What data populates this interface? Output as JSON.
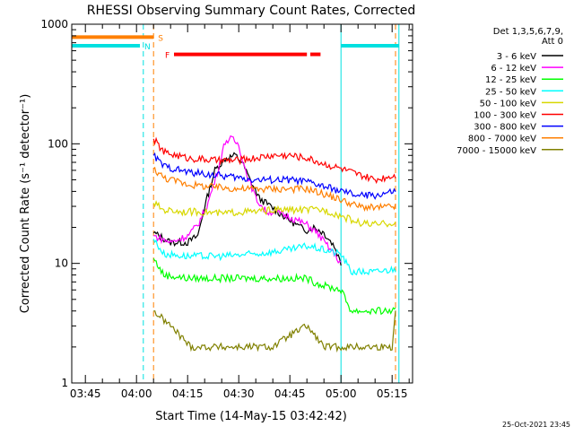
{
  "chart_data": {
    "type": "line",
    "title": "RHESSI Observing Summary Count Rates, Corrected",
    "xlabel": "Start Time (14-May-15 03:42:42)",
    "ylabel": "Corrected Count Rate (s⁻¹ detector⁻¹)",
    "y_scale": "log",
    "ylim": [
      1,
      1000
    ],
    "xlim": [
      "03:41",
      "05:21"
    ],
    "x_tick_labels": [
      "03:45",
      "04:00",
      "04:15",
      "04:30",
      "04:45",
      "05:00",
      "05:15"
    ],
    "y_tick_labels": [
      "1",
      "10",
      "100",
      "1000"
    ],
    "footer_date": "25-Oct-2021 23:45",
    "legend": {
      "placement": "right",
      "header_lines": [
        "Det 1,3,5,6,7,9,",
        "Att 0"
      ]
    },
    "flags": [
      {
        "label": "S",
        "color": "#ff7f00",
        "value": 780,
        "segments": [
          [
            "03:41",
            "04:05"
          ]
        ]
      },
      {
        "label": "N",
        "color": "#00e0e0",
        "value": 660,
        "segments": [
          [
            "03:41",
            "04:01"
          ],
          [
            "05:00",
            "05:17"
          ]
        ]
      },
      {
        "label": "F",
        "color": "#ff0000",
        "value": 560,
        "segments": [
          [
            "04:11",
            "04:50"
          ],
          [
            "04:51",
            "04:54"
          ]
        ]
      }
    ],
    "markers": [
      {
        "time": "04:02",
        "color": "#00e0e0",
        "style": "dashed"
      },
      {
        "time": "04:05",
        "color": "#ff7f00",
        "style": "dashed"
      },
      {
        "time": "05:00",
        "color": "#00e0e0",
        "style": "solid"
      },
      {
        "time": "05:16",
        "color": "#ff7f00",
        "style": "dashed"
      },
      {
        "time": "05:17",
        "color": "#00e0e0",
        "style": "solid"
      }
    ],
    "series": [
      {
        "name": "3 - 6 keV",
        "color": "#000000",
        "x": [
          "04:05",
          "04:10",
          "04:15",
          "04:18",
          "04:20",
          "04:23",
          "04:26",
          "04:29",
          "04:31",
          "04:33",
          "04:36",
          "04:40",
          "04:44",
          "04:48",
          "04:50",
          "04:52",
          "04:55",
          "04:58",
          "05:00"
        ],
        "values": [
          18,
          15,
          15,
          17,
          30,
          60,
          75,
          80,
          70,
          52,
          35,
          29,
          24,
          20,
          19,
          20,
          18,
          14,
          10
        ]
      },
      {
        "name": "6 - 12 keV",
        "color": "#ff00ff",
        "x": [
          "04:05",
          "04:10",
          "04:15",
          "04:18",
          "04:21",
          "04:24",
          "04:26",
          "04:28",
          "04:30",
          "04:32",
          "04:35",
          "04:38",
          "04:41",
          "04:44",
          "04:47",
          "04:50",
          "04:53",
          "04:56",
          "04:58",
          "05:00"
        ],
        "values": [
          17,
          15,
          17,
          21,
          32,
          62,
          105,
          110,
          98,
          60,
          35,
          27,
          27,
          25,
          23,
          21,
          18,
          14,
          12,
          10
        ]
      },
      {
        "name": "12 - 25 keV",
        "color": "#00ff00",
        "x": [
          "04:05",
          "04:08",
          "04:15",
          "04:25",
          "04:35",
          "04:45",
          "04:50",
          "04:52",
          "04:55",
          "05:00",
          "05:03",
          "05:15",
          "05:16"
        ],
        "values": [
          11,
          8,
          7.5,
          7.5,
          7.5,
          7.5,
          7.5,
          7,
          6.5,
          6,
          4,
          4,
          4
        ]
      },
      {
        "name": "25 - 50 keV",
        "color": "#00ffff",
        "x": [
          "04:05",
          "04:08",
          "04:15",
          "04:25",
          "04:35",
          "04:45",
          "04:50",
          "04:55",
          "05:00",
          "05:03",
          "05:10",
          "05:16"
        ],
        "values": [
          16,
          12,
          11.5,
          11.5,
          12,
          13,
          14,
          13,
          12,
          8.5,
          8.5,
          9
        ]
      },
      {
        "name": "50 - 100 keV",
        "color": "#d8d800",
        "x": [
          "04:05",
          "04:08",
          "04:15",
          "04:20",
          "04:25",
          "04:30",
          "04:35",
          "04:40",
          "04:45",
          "04:50",
          "04:55",
          "05:00",
          "05:05",
          "05:10",
          "05:16"
        ],
        "values": [
          32,
          28,
          27,
          27,
          26,
          27,
          27,
          28,
          28,
          28,
          28,
          25,
          22,
          21,
          22
        ]
      },
      {
        "name": "100 - 300 keV",
        "color": "#ff0000",
        "x": [
          "04:05",
          "04:08",
          "04:15",
          "04:20",
          "04:25",
          "04:30",
          "04:35",
          "04:40",
          "04:45",
          "04:50",
          "04:55",
          "05:00",
          "05:05",
          "05:10",
          "05:16"
        ],
        "values": [
          110,
          85,
          76,
          74,
          72,
          73,
          76,
          80,
          80,
          76,
          68,
          62,
          55,
          50,
          55
        ]
      },
      {
        "name": "300 - 800 keV",
        "color": "#0000ff",
        "x": [
          "04:05",
          "04:08",
          "04:15",
          "04:20",
          "04:25",
          "04:30",
          "04:35",
          "04:40",
          "04:45",
          "04:50",
          "04:55",
          "05:00",
          "05:05",
          "05:10",
          "05:16"
        ],
        "values": [
          80,
          65,
          58,
          56,
          54,
          52,
          50,
          50,
          50,
          48,
          44,
          40,
          37,
          37,
          40
        ]
      },
      {
        "name": "800 - 7000 keV",
        "color": "#ff7f00",
        "x": [
          "04:05",
          "04:08",
          "04:15",
          "04:20",
          "04:25",
          "04:30",
          "04:35",
          "04:40",
          "04:45",
          "04:50",
          "04:55",
          "05:00",
          "05:05",
          "05:10",
          "05:16"
        ],
        "values": [
          62,
          52,
          46,
          44,
          43,
          42,
          42,
          42,
          42,
          42,
          38,
          34,
          30,
          29,
          30
        ]
      },
      {
        "name": "7000 - 15000 keV",
        "color": "#808000",
        "x": [
          "04:05",
          "04:10",
          "04:16",
          "04:22",
          "04:28",
          "04:34",
          "04:40",
          "04:45",
          "04:50",
          "04:55",
          "05:00",
          "05:05",
          "05:10",
          "05:15",
          "05:16"
        ],
        "values": [
          4,
          3,
          2,
          2,
          2,
          2,
          2,
          2.5,
          3,
          2,
          2,
          2,
          2,
          2,
          4
        ]
      }
    ]
  }
}
